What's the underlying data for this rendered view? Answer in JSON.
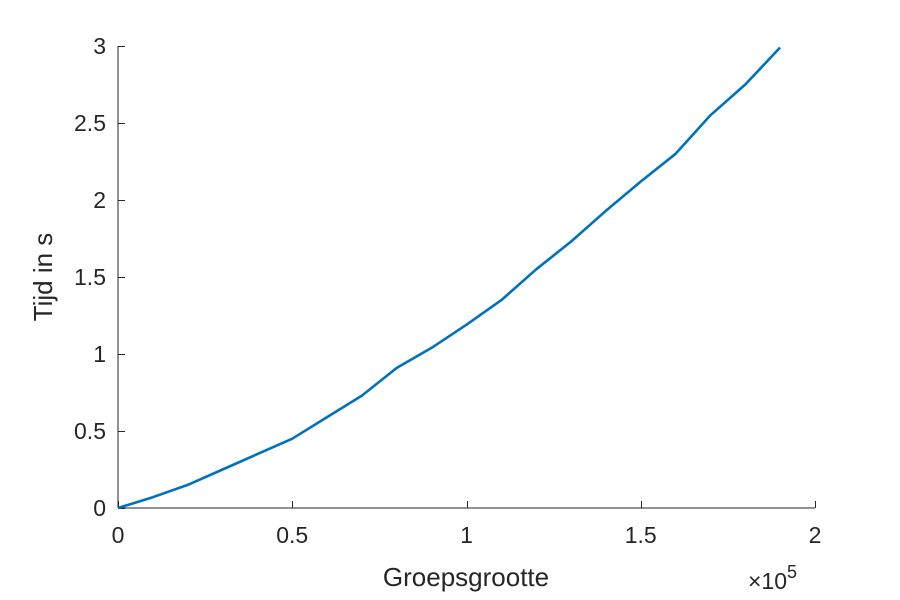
{
  "chart_data": {
    "type": "line",
    "title": "",
    "xlabel": "Groepsgrootte",
    "ylabel": "Tijd in s",
    "x_exponent_base": "×10",
    "x_exponent_power": "5",
    "xlim": [
      0,
      200000
    ],
    "ylim": [
      0,
      3
    ],
    "xticks": [
      0,
      50000,
      100000,
      150000,
      200000
    ],
    "xtick_labels": [
      "0",
      "0.5",
      "1",
      "1.5",
      "2"
    ],
    "yticks": [
      0,
      0.5,
      1,
      1.5,
      2,
      2.5,
      3
    ],
    "ytick_labels": [
      "0",
      "0.5",
      "1",
      "1.5",
      "2",
      "2.5",
      "3"
    ],
    "grid": false,
    "line_color": "#0072BD",
    "axis_color": "#262626",
    "series": [
      {
        "x": [
          0,
          10000,
          20000,
          30000,
          40000,
          50000,
          60000,
          70000,
          80000,
          90000,
          100000,
          110000,
          120000,
          130000,
          140000,
          150000,
          160000,
          170000,
          180000,
          190000
        ],
        "y": [
          0,
          0.07,
          0.15,
          0.25,
          0.35,
          0.45,
          0.59,
          0.73,
          0.91,
          1.04,
          1.19,
          1.35,
          1.55,
          1.73,
          1.93,
          2.12,
          2.3,
          2.55,
          2.75,
          2.99
        ]
      }
    ]
  }
}
